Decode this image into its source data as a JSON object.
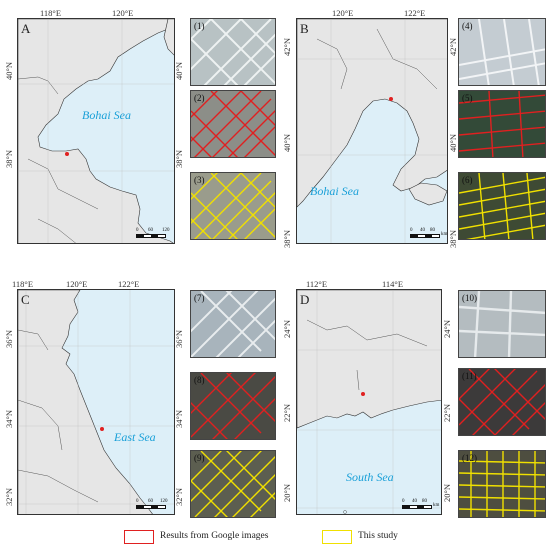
{
  "panels": [
    {
      "letter": "A",
      "sea": "Bohai Sea",
      "lon_ticks": [
        "118°E",
        "120°E"
      ],
      "lat_left": [
        "40°N",
        "38°N"
      ],
      "lat_right": [
        "40°N",
        "38°N"
      ],
      "scale": [
        "0",
        "60",
        "120"
      ],
      "thumb_nums": [
        "(1)",
        "(2)",
        "(3)"
      ]
    },
    {
      "letter": "B",
      "sea": "Bohai Sea",
      "lon_ticks": [
        "120°E",
        "122°E"
      ],
      "lat_left": [
        "42°N",
        "40°N",
        "38°N"
      ],
      "lat_right": [
        "42°N",
        "40°N",
        "38°N"
      ],
      "scale": [
        "0",
        "40",
        "80",
        "km"
      ],
      "thumb_nums": [
        "(4)",
        "(5)",
        "(6)"
      ]
    },
    {
      "letter": "C",
      "sea": "East Sea",
      "lon_ticks": [
        "118°E",
        "120°E",
        "122°E"
      ],
      "lat_left": [
        "36°N",
        "34°N",
        "32°N"
      ],
      "lat_right": [
        "36°N",
        "34°N",
        "32°N"
      ],
      "scale": [
        "0",
        "60",
        "120"
      ],
      "thumb_nums": [
        "(7)",
        "(8)",
        "(9)"
      ]
    },
    {
      "letter": "D",
      "sea": "South Sea",
      "lon_ticks": [
        "112°E",
        "114°E"
      ],
      "lat_left": [
        "24°N",
        "22°N",
        "20°N"
      ],
      "lat_right": [
        "24°N",
        "22°N",
        "20°N"
      ],
      "scale": [
        "0",
        "40",
        "80",
        "km"
      ],
      "thumb_nums": [
        "(10)",
        "(11)",
        "(12)"
      ]
    }
  ],
  "legend": {
    "google": {
      "label": "Results from Google images",
      "color": "#e02020"
    },
    "study": {
      "label": "This study",
      "color": "#f0e000"
    }
  },
  "colors": {
    "sea": "#ddeff8",
    "land": "#e6e6e6",
    "sea_label": "#1aa0d8",
    "site": "#e02020"
  }
}
